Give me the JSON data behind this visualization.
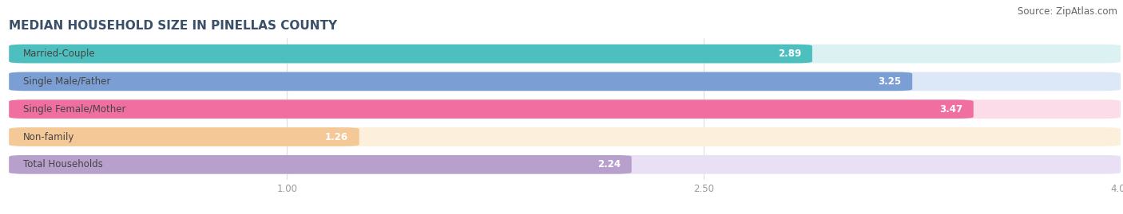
{
  "title": "MEDIAN HOUSEHOLD SIZE IN PINELLAS COUNTY",
  "source": "Source: ZipAtlas.com",
  "categories": [
    "Married-Couple",
    "Single Male/Father",
    "Single Female/Mother",
    "Non-family",
    "Total Households"
  ],
  "values": [
    2.89,
    3.25,
    3.47,
    1.26,
    2.24
  ],
  "bar_colors": [
    "#4DBFBF",
    "#7B9FD4",
    "#F06FA0",
    "#F5C898",
    "#B8A0CC"
  ],
  "bar_bg_colors": [
    "#DCF2F2",
    "#DCE8F8",
    "#FCDCE8",
    "#FCF0DC",
    "#EAE0F5"
  ],
  "xmin": 0,
  "xmax": 4.0,
  "xticks": [
    1.0,
    2.5,
    4.0
  ],
  "title_fontsize": 11,
  "source_fontsize": 8.5,
  "label_fontsize": 8.5,
  "value_fontsize": 8.5,
  "tick_fontsize": 8.5,
  "bar_height": 0.68,
  "bar_gap": 0.32,
  "title_color": "#3A5068",
  "source_color": "#666666",
  "tick_color": "#999999",
  "value_color": "#FFFFFF",
  "label_color": "#444444",
  "grid_color": "#DDDDDD",
  "background_color": "#FFFFFF"
}
